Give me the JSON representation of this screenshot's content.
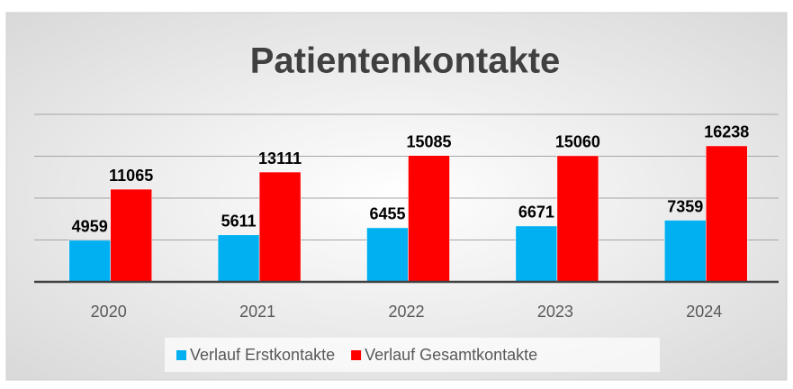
{
  "chart_data": {
    "type": "bar",
    "title": "Patientenkontakte",
    "categories": [
      "2020",
      "2021",
      "2022",
      "2023",
      "2024"
    ],
    "series": [
      {
        "name": "Verlauf Erstkontakte",
        "color": "#00b0f0",
        "values": [
          4959,
          5611,
          6455,
          6671,
          7359
        ]
      },
      {
        "name": "Verlauf Gesamtkontakte",
        "color": "#ff0000",
        "values": [
          11065,
          13111,
          15085,
          15060,
          16238
        ]
      }
    ],
    "ylim": [
      0,
      20000
    ],
    "yticks": [
      0,
      5000,
      10000,
      15000,
      20000
    ],
    "grid": true,
    "legend": "bottom"
  }
}
